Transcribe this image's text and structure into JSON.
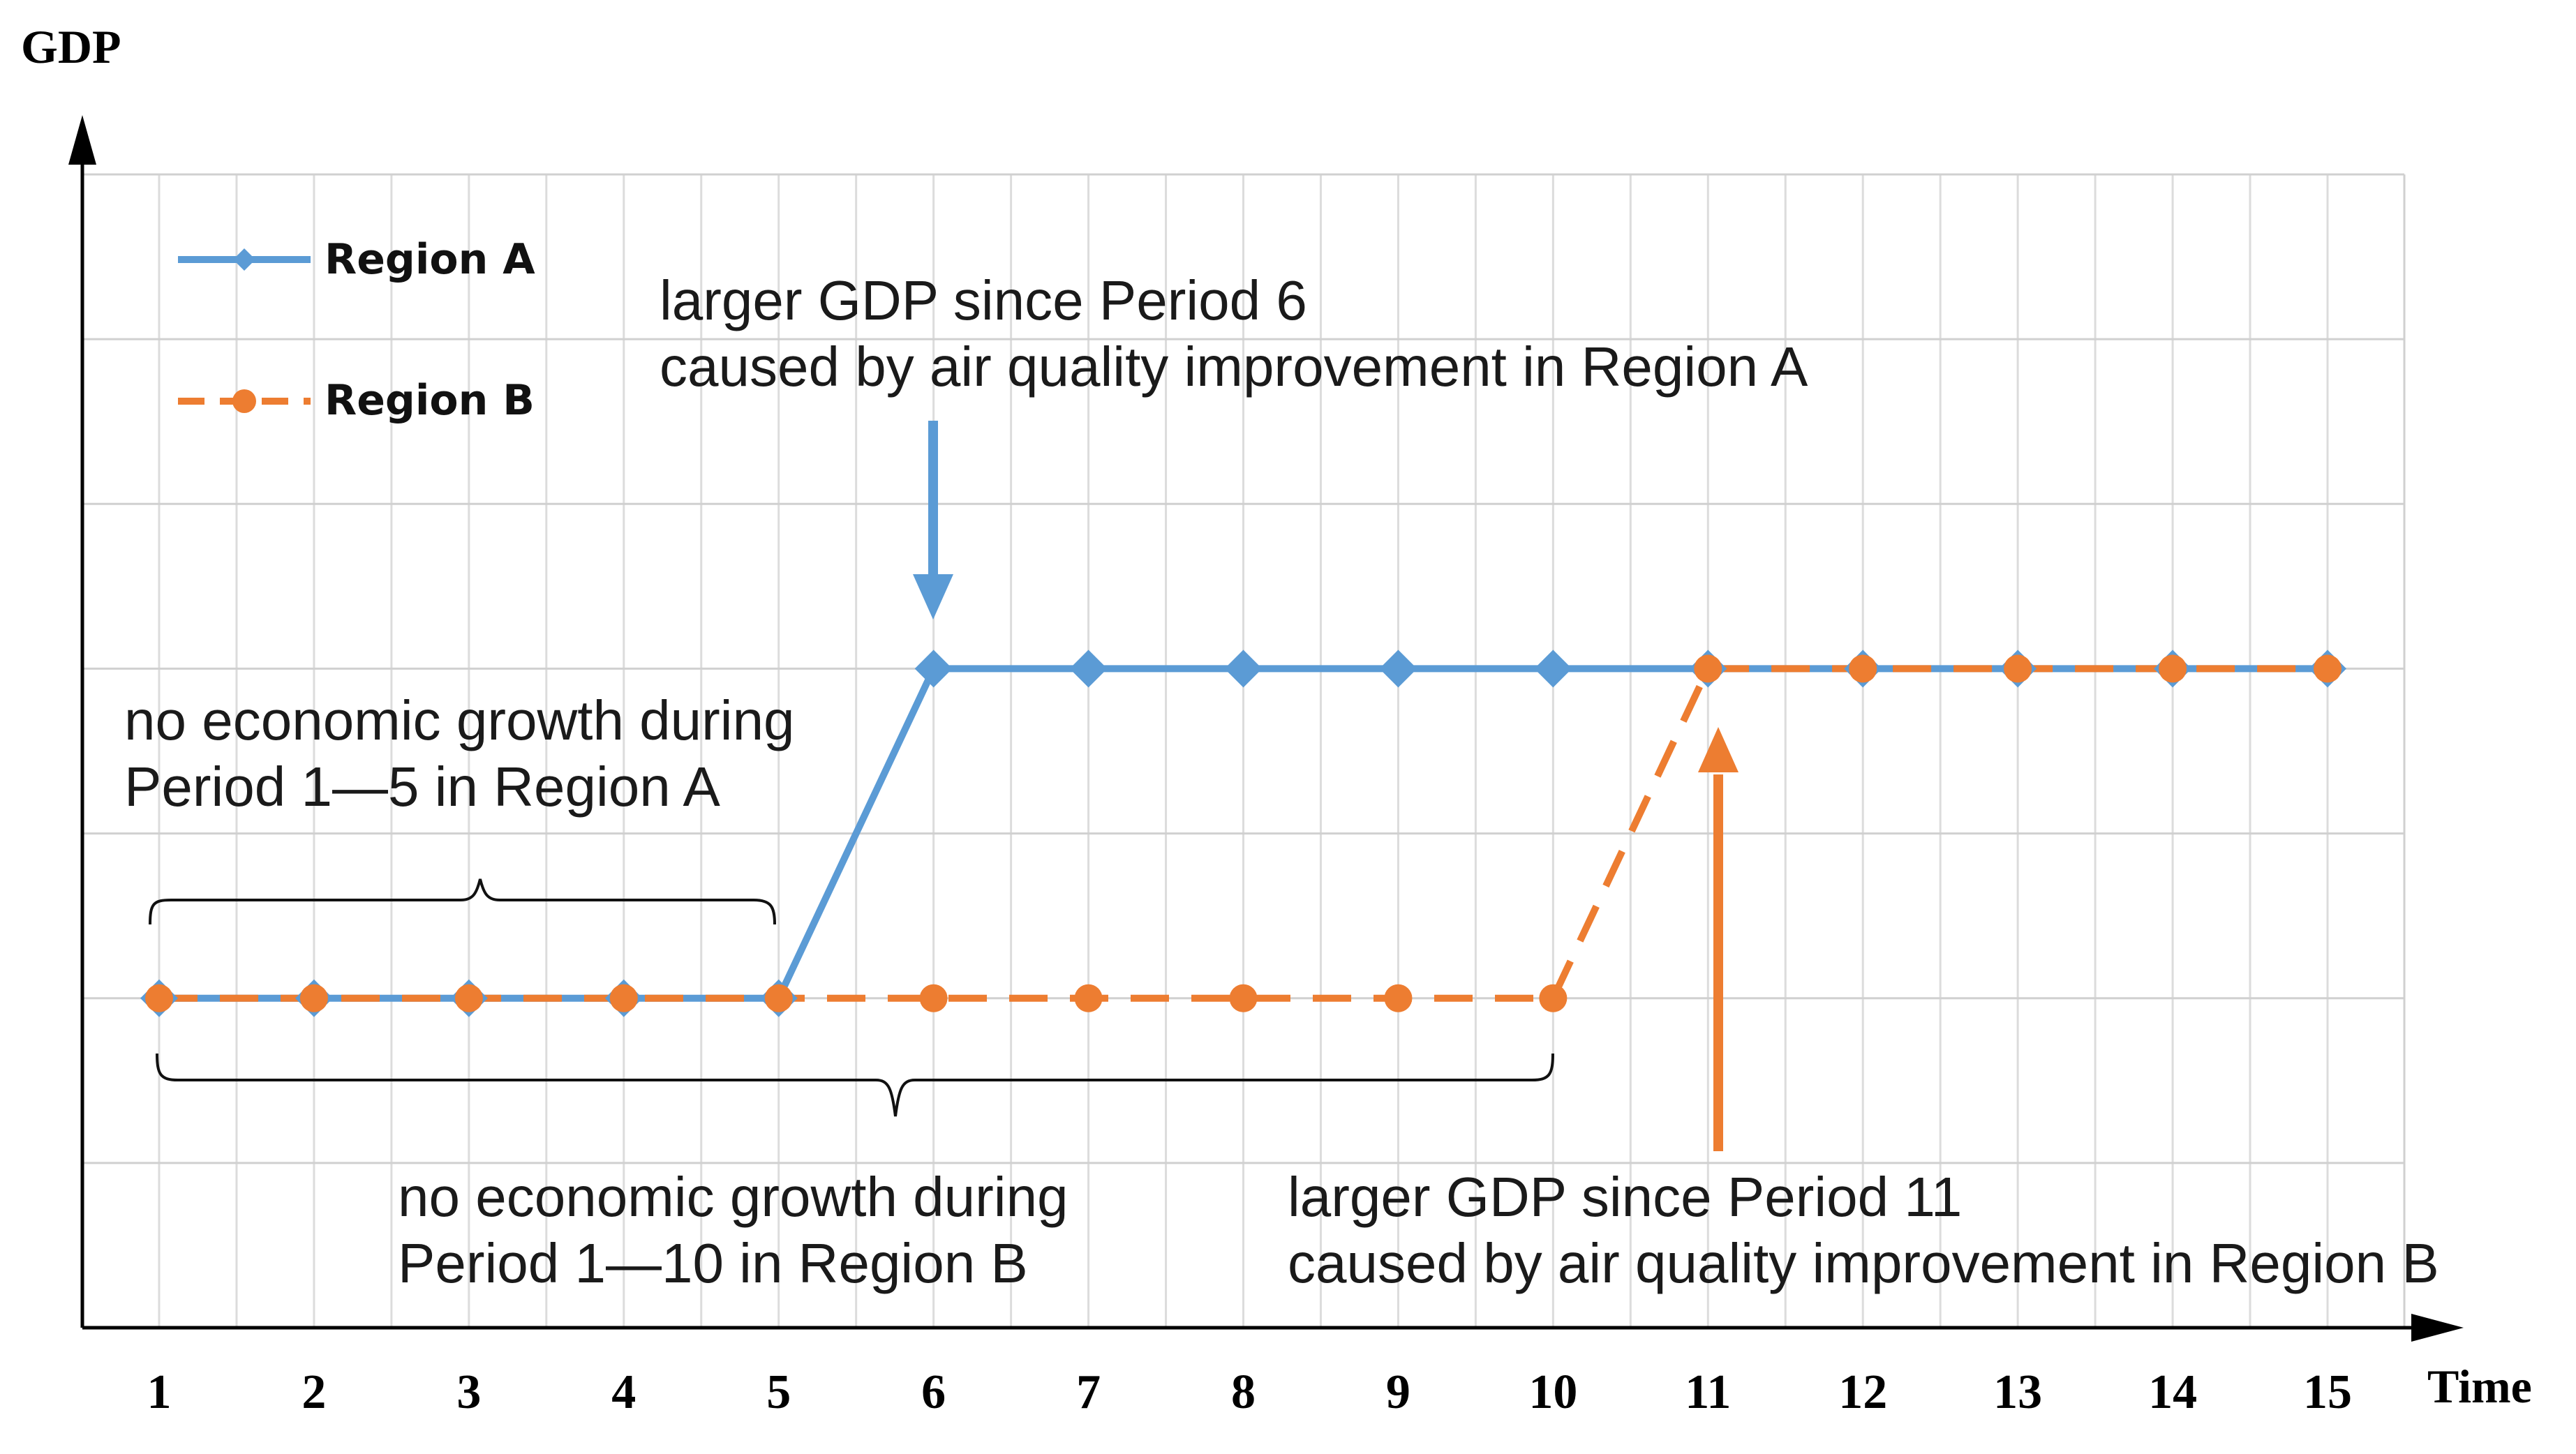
{
  "chart_data": {
    "type": "line",
    "ylabel": "GDP",
    "xlabel": "Time",
    "x": [
      1,
      2,
      3,
      4,
      5,
      6,
      7,
      8,
      9,
      10,
      11,
      12,
      13,
      14,
      15
    ],
    "xlim": [
      0.5,
      15.5
    ],
    "ylim": [
      0,
      7
    ],
    "grid": true,
    "legend_position": "top-left",
    "series": [
      {
        "name": "Region A",
        "color": "#5b9bd5",
        "style": "solid",
        "marker": "diamond",
        "values": [
          2,
          2,
          2,
          2,
          2,
          4,
          4,
          4,
          4,
          4,
          4,
          4,
          4,
          4,
          4
        ]
      },
      {
        "name": "Region B",
        "color": "#ed7d31",
        "style": "dashed",
        "marker": "circle",
        "values": [
          2,
          2,
          2,
          2,
          2,
          2,
          2,
          2,
          2,
          2,
          4,
          4,
          4,
          4,
          4
        ]
      }
    ],
    "annotations": [
      {
        "id": "a-growth",
        "lines": [
          "larger GDP since Period 6",
          "caused by air quality improvement in Region A"
        ]
      },
      {
        "id": "a-flat",
        "lines": [
          "no economic growth during",
          "Period 1—5 in Region A"
        ]
      },
      {
        "id": "b-flat",
        "lines": [
          "no economic growth during",
          "Period 1—10 in Region B"
        ]
      },
      {
        "id": "b-growth",
        "lines": [
          "larger GDP since Period 11",
          "caused by air quality improvement in Region B"
        ]
      }
    ]
  }
}
